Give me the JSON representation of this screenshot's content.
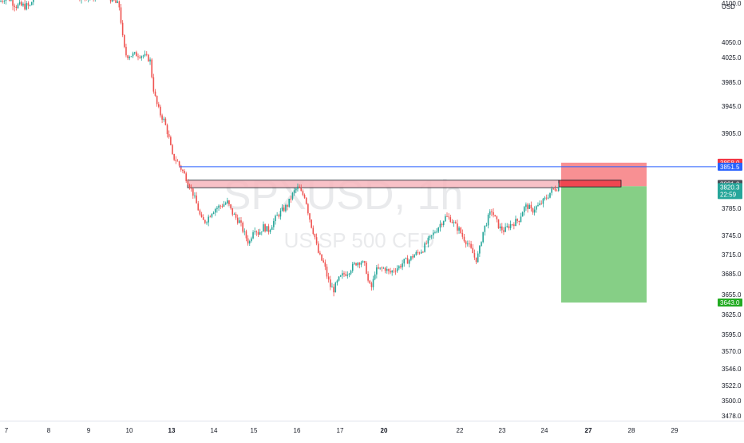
{
  "chart": {
    "symbol": "SPXUSD, 1h",
    "subtitle": "US SP 500 CFD",
    "currency": "USD"
  },
  "colors": {
    "up": "#26a69a",
    "down": "#ef5350",
    "stop_zone": "#f77c80",
    "target_zone": "#7fcc7f",
    "supply_zone": "#f7b6bd",
    "line": "#2962ff"
  },
  "price_labels": {
    "stop": "3858.0",
    "line": "3851.5",
    "last": "3821.0",
    "price": "3820.3",
    "countdown": "22:59",
    "target": "3643.0"
  },
  "chart_data": {
    "type": "candlestick",
    "ylabel": "USD",
    "y_ticks": [
      4100,
      4050,
      4025,
      3985,
      3945,
      3905,
      3785,
      3745,
      3715,
      3685,
      3655,
      3625,
      3595,
      3570,
      3546,
      3522,
      3500,
      3478
    ],
    "y_tick_labels": [
      "4100.0",
      "4050.0",
      "4025.0",
      "3985.0",
      "3945.0",
      "3905.0",
      "3785.0",
      "3745.0",
      "3715.0",
      "3685.0",
      "3655.0",
      "3625.0",
      "3595.0",
      "3570.0",
      "3546.0",
      "3522.0",
      "3500.0",
      "3478.0"
    ],
    "x_ticks": [
      {
        "label": "7",
        "bold": false
      },
      {
        "label": "8",
        "bold": false
      },
      {
        "label": "9",
        "bold": false
      },
      {
        "label": "10",
        "bold": false
      },
      {
        "label": "13",
        "bold": true
      },
      {
        "label": "14",
        "bold": false
      },
      {
        "label": "15",
        "bold": false
      },
      {
        "label": "16",
        "bold": false
      },
      {
        "label": "17",
        "bold": false
      },
      {
        "label": "20",
        "bold": true
      },
      {
        "label": "22",
        "bold": false
      },
      {
        "label": "23",
        "bold": false
      },
      {
        "label": "24",
        "bold": false
      },
      {
        "label": "27",
        "bold": true
      },
      {
        "label": "28",
        "bold": false
      },
      {
        "label": "29",
        "bold": false
      }
    ],
    "price_path": [
      [
        0,
        4102
      ],
      [
        8,
        4110
      ],
      [
        20,
        4097
      ],
      [
        38,
        4096
      ],
      [
        42,
        4110
      ],
      [
        50,
        4118
      ],
      [
        60,
        4125
      ],
      [
        80,
        4120
      ],
      [
        100,
        4110
      ],
      [
        115,
        4108
      ],
      [
        128,
        4120
      ],
      [
        140,
        4105
      ],
      [
        150,
        4095
      ],
      [
        153,
        4060
      ],
      [
        157,
        4030
      ],
      [
        160,
        4028
      ],
      [
        170,
        4030
      ],
      [
        180,
        4028
      ],
      [
        185,
        4024
      ],
      [
        188,
        4020
      ],
      [
        192,
        3975
      ],
      [
        196,
        3950
      ],
      [
        200,
        3935
      ],
      [
        205,
        3925
      ],
      [
        209,
        3910
      ],
      [
        212,
        3895
      ],
      [
        216,
        3868
      ],
      [
        222,
        3860
      ],
      [
        226,
        3850
      ],
      [
        230,
        3842
      ],
      [
        236,
        3826
      ],
      [
        242,
        3808
      ],
      [
        248,
        3785
      ],
      [
        252,
        3768
      ],
      [
        256,
        3765
      ],
      [
        260,
        3770
      ],
      [
        265,
        3780
      ],
      [
        270,
        3785
      ],
      [
        278,
        3790
      ],
      [
        285,
        3795
      ],
      [
        290,
        3780
      ],
      [
        295,
        3772
      ],
      [
        300,
        3765
      ],
      [
        306,
        3748
      ],
      [
        312,
        3732
      ],
      [
        318,
        3758
      ],
      [
        324,
        3748
      ],
      [
        330,
        3758
      ],
      [
        336,
        3752
      ],
      [
        342,
        3764
      ],
      [
        348,
        3775
      ],
      [
        354,
        3782
      ],
      [
        360,
        3790
      ],
      [
        366,
        3806
      ],
      [
        370,
        3815
      ],
      [
        374,
        3818
      ],
      [
        378,
        3808
      ],
      [
        382,
        3805
      ],
      [
        386,
        3780
      ],
      [
        390,
        3760
      ],
      [
        394,
        3745
      ],
      [
        398,
        3720
      ],
      [
        402,
        3708
      ],
      [
        406,
        3700
      ],
      [
        410,
        3680
      ],
      [
        414,
        3666
      ],
      [
        418,
        3662
      ],
      [
        424,
        3676
      ],
      [
        430,
        3684
      ],
      [
        436,
        3688
      ],
      [
        440,
        3694
      ],
      [
        446,
        3702
      ],
      [
        452,
        3705
      ],
      [
        458,
        3696
      ],
      [
        462,
        3668
      ],
      [
        466,
        3665
      ],
      [
        470,
        3690
      ],
      [
        476,
        3692
      ],
      [
        482,
        3694
      ],
      [
        488,
        3686
      ],
      [
        494,
        3692
      ],
      [
        500,
        3696
      ],
      [
        506,
        3704
      ],
      [
        512,
        3706
      ],
      [
        518,
        3714
      ],
      [
        524,
        3718
      ],
      [
        530,
        3724
      ],
      [
        536,
        3736
      ],
      [
        542,
        3746
      ],
      [
        548,
        3756
      ],
      [
        554,
        3766
      ],
      [
        558,
        3772
      ],
      [
        564,
        3770
      ],
      [
        570,
        3760
      ],
      [
        576,
        3752
      ],
      [
        580,
        3742
      ],
      [
        586,
        3732
      ],
      [
        592,
        3718
      ],
      [
        596,
        3706
      ],
      [
        600,
        3718
      ],
      [
        604,
        3746
      ],
      [
        608,
        3760
      ],
      [
        612,
        3772
      ],
      [
        616,
        3782
      ],
      [
        620,
        3770
      ],
      [
        626,
        3756
      ],
      [
        632,
        3752
      ],
      [
        638,
        3760
      ],
      [
        644,
        3764
      ],
      [
        650,
        3768
      ],
      [
        654,
        3780
      ],
      [
        658,
        3788
      ],
      [
        662,
        3788
      ],
      [
        666,
        3780
      ],
      [
        670,
        3786
      ],
      [
        676,
        3790
      ],
      [
        680,
        3796
      ],
      [
        686,
        3804
      ],
      [
        690,
        3812
      ],
      [
        694,
        3816
      ],
      [
        698,
        3818
      ],
      [
        701,
        3820
      ]
    ],
    "annotations": [
      {
        "type": "horizontal_line",
        "price": 3851.5
      },
      {
        "type": "supply_zone",
        "from": 3818,
        "to": 3830
      },
      {
        "type": "stop_zone",
        "from": 3820.3,
        "to": 3858.0
      },
      {
        "type": "target_zone",
        "from": 3643.0,
        "to": 3820.3
      }
    ]
  }
}
